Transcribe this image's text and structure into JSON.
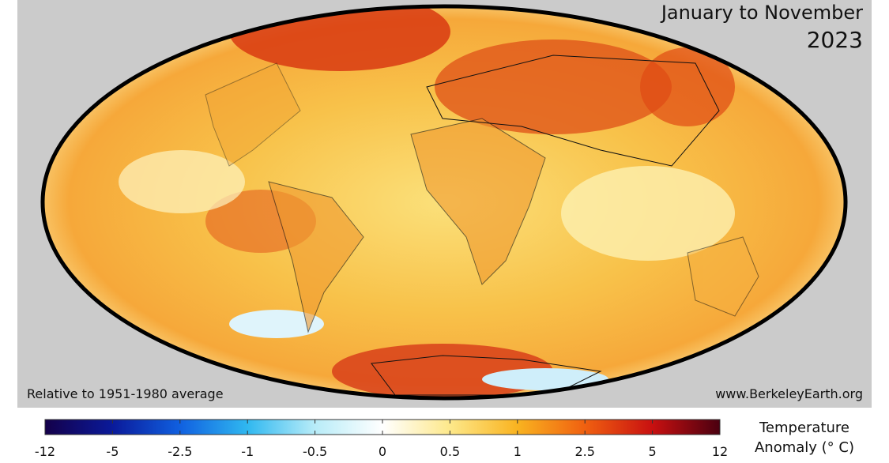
{
  "header": {
    "title": "January to November",
    "year": "2023"
  },
  "footer": {
    "baseline": "Relative to 1951-1980 average",
    "source": "www.BerkeleyEarth.org"
  },
  "legend": {
    "title_line1": "Temperature",
    "title_line2": "Anomaly (° C)",
    "ticks": [
      -12,
      -5,
      -2.5,
      -1,
      -0.5,
      0,
      0.5,
      1,
      2.5,
      5,
      12
    ]
  }
}
